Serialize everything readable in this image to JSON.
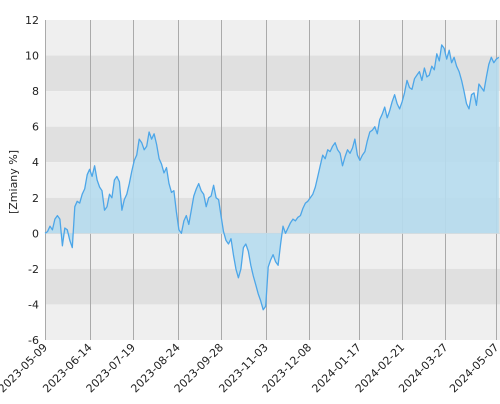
{
  "chart_data": {
    "type": "area",
    "ylabel": "[Zmiany %]",
    "ylim": [
      -6,
      12
    ],
    "yticks": [
      "12",
      "10",
      "8",
      "6",
      "4",
      "2",
      "0",
      "-2",
      "-4",
      "-6"
    ],
    "xlim": [
      "2023-05-09",
      "2024-05-10"
    ],
    "xticks": [
      "2023-05-09",
      "2023-06-14",
      "2023-07-19",
      "2023-08-24",
      "2023-09-28",
      "2023-11-03",
      "2023-12-08",
      "2024-01-17",
      "2024-02-21",
      "2024-03-27",
      "2024-05-07"
    ],
    "grid": true,
    "series": [
      {
        "points": [
          [
            "2023-05-09",
            0.0
          ],
          [
            "2023-05-11",
            0.1
          ],
          [
            "2023-05-13",
            0.4
          ],
          [
            "2023-05-15",
            0.2
          ],
          [
            "2023-05-17",
            0.8
          ],
          [
            "2023-05-19",
            1.0
          ],
          [
            "2023-05-21",
            0.8
          ],
          [
            "2023-05-23",
            -0.7
          ],
          [
            "2023-05-25",
            0.3
          ],
          [
            "2023-05-27",
            0.2
          ],
          [
            "2023-05-29",
            -0.4
          ],
          [
            "2023-05-31",
            -0.8
          ],
          [
            "2023-06-02",
            1.5
          ],
          [
            "2023-06-04",
            1.8
          ],
          [
            "2023-06-06",
            1.7
          ],
          [
            "2023-06-08",
            2.2
          ],
          [
            "2023-06-10",
            2.5
          ],
          [
            "2023-06-12",
            3.3
          ],
          [
            "2023-06-14",
            3.6
          ],
          [
            "2023-06-16",
            3.2
          ],
          [
            "2023-06-18",
            3.8
          ],
          [
            "2023-06-20",
            3.0
          ],
          [
            "2023-06-22",
            2.6
          ],
          [
            "2023-06-24",
            2.4
          ],
          [
            "2023-06-26",
            1.3
          ],
          [
            "2023-06-28",
            1.5
          ],
          [
            "2023-06-30",
            2.2
          ],
          [
            "2023-07-02",
            2.0
          ],
          [
            "2023-07-04",
            3.0
          ],
          [
            "2023-07-06",
            3.2
          ],
          [
            "2023-07-08",
            2.9
          ],
          [
            "2023-07-10",
            1.3
          ],
          [
            "2023-07-12",
            1.9
          ],
          [
            "2023-07-14",
            2.2
          ],
          [
            "2023-07-16",
            2.8
          ],
          [
            "2023-07-18",
            3.5
          ],
          [
            "2023-07-20",
            4.1
          ],
          [
            "2023-07-22",
            4.4
          ],
          [
            "2023-07-24",
            5.3
          ],
          [
            "2023-07-26",
            5.1
          ],
          [
            "2023-07-28",
            4.7
          ],
          [
            "2023-07-30",
            4.9
          ],
          [
            "2023-08-01",
            5.7
          ],
          [
            "2023-08-03",
            5.3
          ],
          [
            "2023-08-05",
            5.6
          ],
          [
            "2023-08-07",
            5.0
          ],
          [
            "2023-08-09",
            4.2
          ],
          [
            "2023-08-11",
            3.9
          ],
          [
            "2023-08-13",
            3.4
          ],
          [
            "2023-08-15",
            3.7
          ],
          [
            "2023-08-17",
            2.8
          ],
          [
            "2023-08-19",
            2.3
          ],
          [
            "2023-08-21",
            2.4
          ],
          [
            "2023-08-23",
            1.2
          ],
          [
            "2023-08-25",
            0.2
          ],
          [
            "2023-08-27",
            0.0
          ],
          [
            "2023-08-29",
            0.7
          ],
          [
            "2023-08-31",
            1.0
          ],
          [
            "2023-09-02",
            0.5
          ],
          [
            "2023-09-04",
            1.3
          ],
          [
            "2023-09-06",
            2.1
          ],
          [
            "2023-09-08",
            2.5
          ],
          [
            "2023-09-10",
            2.8
          ],
          [
            "2023-09-12",
            2.4
          ],
          [
            "2023-09-14",
            2.2
          ],
          [
            "2023-09-16",
            1.5
          ],
          [
            "2023-09-18",
            2.0
          ],
          [
            "2023-09-20",
            2.1
          ],
          [
            "2023-09-22",
            2.7
          ],
          [
            "2023-09-24",
            2.0
          ],
          [
            "2023-09-26",
            1.9
          ],
          [
            "2023-09-28",
            1.0
          ],
          [
            "2023-09-30",
            0.1
          ],
          [
            "2023-10-02",
            -0.4
          ],
          [
            "2023-10-04",
            -0.6
          ],
          [
            "2023-10-06",
            -0.3
          ],
          [
            "2023-10-08",
            -1.2
          ],
          [
            "2023-10-10",
            -2.0
          ],
          [
            "2023-10-12",
            -2.5
          ],
          [
            "2023-10-14",
            -2.0
          ],
          [
            "2023-10-16",
            -0.8
          ],
          [
            "2023-10-18",
            -0.6
          ],
          [
            "2023-10-20",
            -1.0
          ],
          [
            "2023-10-22",
            -1.8
          ],
          [
            "2023-10-24",
            -2.4
          ],
          [
            "2023-10-26",
            -2.9
          ],
          [
            "2023-10-28",
            -3.4
          ],
          [
            "2023-10-30",
            -3.8
          ],
          [
            "2023-11-01",
            -4.3
          ],
          [
            "2023-11-03",
            -4.1
          ],
          [
            "2023-11-05",
            -1.9
          ],
          [
            "2023-11-07",
            -1.5
          ],
          [
            "2023-11-09",
            -1.2
          ],
          [
            "2023-11-11",
            -1.6
          ],
          [
            "2023-11-13",
            -1.8
          ],
          [
            "2023-11-15",
            -0.6
          ],
          [
            "2023-11-17",
            0.4
          ],
          [
            "2023-11-19",
            0.0
          ],
          [
            "2023-11-21",
            0.3
          ],
          [
            "2023-11-23",
            0.6
          ],
          [
            "2023-11-25",
            0.8
          ],
          [
            "2023-11-27",
            0.7
          ],
          [
            "2023-11-29",
            0.9
          ],
          [
            "2023-12-01",
            1.0
          ],
          [
            "2023-12-03",
            1.4
          ],
          [
            "2023-12-05",
            1.7
          ],
          [
            "2023-12-07",
            1.8
          ],
          [
            "2023-12-09",
            2.0
          ],
          [
            "2023-12-11",
            2.2
          ],
          [
            "2023-12-13",
            2.6
          ],
          [
            "2023-12-15",
            3.2
          ],
          [
            "2023-12-17",
            3.8
          ],
          [
            "2023-12-19",
            4.4
          ],
          [
            "2023-12-21",
            4.2
          ],
          [
            "2023-12-23",
            4.7
          ],
          [
            "2023-12-25",
            4.6
          ],
          [
            "2023-12-27",
            4.9
          ],
          [
            "2023-12-29",
            5.1
          ],
          [
            "2023-12-31",
            4.7
          ],
          [
            "2024-01-02",
            4.5
          ],
          [
            "2024-01-04",
            3.8
          ],
          [
            "2024-01-06",
            4.3
          ],
          [
            "2024-01-08",
            4.7
          ],
          [
            "2024-01-10",
            4.5
          ],
          [
            "2024-01-12",
            4.8
          ],
          [
            "2024-01-14",
            5.3
          ],
          [
            "2024-01-16",
            4.4
          ],
          [
            "2024-01-18",
            4.1
          ],
          [
            "2024-01-20",
            4.4
          ],
          [
            "2024-01-22",
            4.6
          ],
          [
            "2024-01-24",
            5.2
          ],
          [
            "2024-01-26",
            5.7
          ],
          [
            "2024-01-28",
            5.8
          ],
          [
            "2024-01-30",
            6.0
          ],
          [
            "2024-02-01",
            5.6
          ],
          [
            "2024-02-03",
            6.4
          ],
          [
            "2024-02-05",
            6.7
          ],
          [
            "2024-02-07",
            7.1
          ],
          [
            "2024-02-09",
            6.5
          ],
          [
            "2024-02-11",
            6.9
          ],
          [
            "2024-02-13",
            7.4
          ],
          [
            "2024-02-15",
            7.8
          ],
          [
            "2024-02-17",
            7.3
          ],
          [
            "2024-02-19",
            7.0
          ],
          [
            "2024-02-21",
            7.4
          ],
          [
            "2024-02-23",
            7.9
          ],
          [
            "2024-02-25",
            8.6
          ],
          [
            "2024-02-27",
            8.2
          ],
          [
            "2024-02-29",
            8.1
          ],
          [
            "2024-03-02",
            8.7
          ],
          [
            "2024-03-04",
            8.9
          ],
          [
            "2024-03-06",
            9.1
          ],
          [
            "2024-03-08",
            8.6
          ],
          [
            "2024-03-10",
            9.3
          ],
          [
            "2024-03-12",
            8.8
          ],
          [
            "2024-03-14",
            8.9
          ],
          [
            "2024-03-16",
            9.4
          ],
          [
            "2024-03-18",
            9.2
          ],
          [
            "2024-03-20",
            10.1
          ],
          [
            "2024-03-22",
            9.7
          ],
          [
            "2024-03-24",
            10.6
          ],
          [
            "2024-03-26",
            10.4
          ],
          [
            "2024-03-28",
            9.8
          ],
          [
            "2024-03-30",
            10.3
          ],
          [
            "2024-04-01",
            9.6
          ],
          [
            "2024-04-03",
            9.9
          ],
          [
            "2024-04-05",
            9.4
          ],
          [
            "2024-04-07",
            9.1
          ],
          [
            "2024-04-09",
            8.6
          ],
          [
            "2024-04-11",
            8.0
          ],
          [
            "2024-04-13",
            7.3
          ],
          [
            "2024-04-15",
            7.0
          ],
          [
            "2024-04-17",
            7.8
          ],
          [
            "2024-04-19",
            7.9
          ],
          [
            "2024-04-21",
            7.2
          ],
          [
            "2024-04-23",
            8.4
          ],
          [
            "2024-04-25",
            8.2
          ],
          [
            "2024-04-27",
            8.0
          ],
          [
            "2024-04-29",
            8.8
          ],
          [
            "2024-05-01",
            9.5
          ],
          [
            "2024-05-03",
            9.9
          ],
          [
            "2024-05-05",
            9.6
          ],
          [
            "2024-05-07",
            9.8
          ],
          [
            "2024-05-09",
            9.9
          ]
        ]
      }
    ]
  },
  "colors": {
    "line": "#4da6e8",
    "fill": "#b6dcee",
    "band_light": "#efefef",
    "band_dark": "#e0e0e0",
    "grid_v": "#aaaaaa",
    "zero_line": "#d8d8d8",
    "text": "#222222"
  }
}
